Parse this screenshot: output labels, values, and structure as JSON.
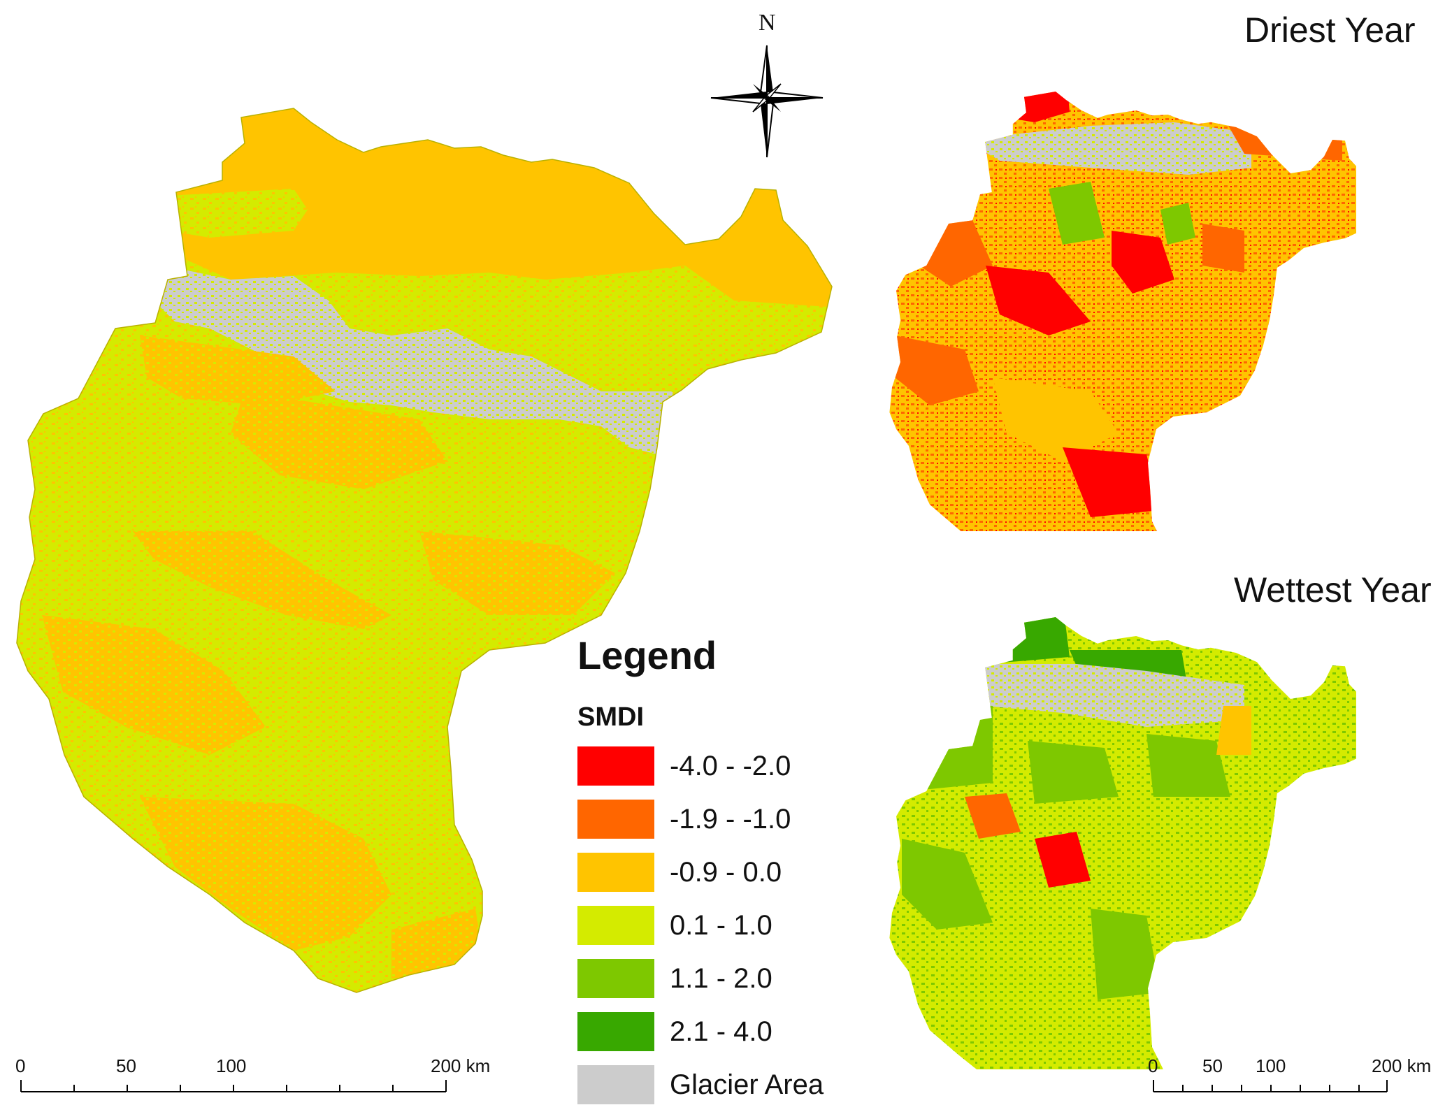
{
  "titles": {
    "driest": "Driest Year",
    "wettest": "Wettest Year"
  },
  "north_arrow": {
    "label": "N",
    "icon": "compass-rose-icon"
  },
  "legend": {
    "heading": "Legend",
    "subheading": "SMDI",
    "items": [
      {
        "label": "-4.0 - -2.0",
        "color": "#ff0000"
      },
      {
        "label": "-1.9 - -1.0",
        "color": "#ff6600"
      },
      {
        "label": "-0.9 - 0.0",
        "color": "#ffc400"
      },
      {
        "label": "0.1 - 1.0",
        "color": "#d4eb00"
      },
      {
        "label": "1.1 - 2.0",
        "color": "#7ec800"
      },
      {
        "label": "2.1 - 4.0",
        "color": "#38a800"
      },
      {
        "label": "Glacier Area",
        "color": "#cccccc"
      }
    ]
  },
  "scale_bars": [
    {
      "id": "main",
      "labels": [
        "0",
        "50",
        "100",
        "200 km"
      ]
    },
    {
      "id": "inset",
      "labels": [
        "0",
        "50",
        "100",
        "200 km"
      ]
    }
  ]
}
